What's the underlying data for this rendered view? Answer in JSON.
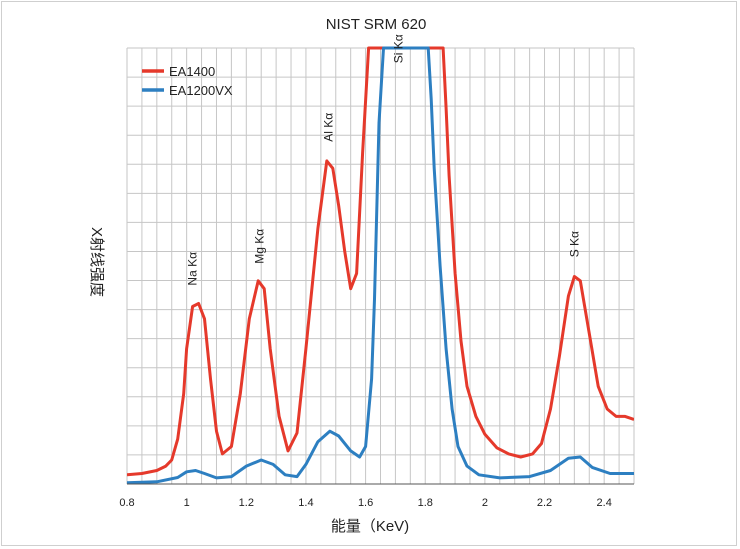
{
  "chart_data": {
    "type": "line",
    "title": "NIST SRM 620",
    "xlabel": "能量（KeV)",
    "ylabel": "X射线强度",
    "xlim": [
      0.8,
      2.5
    ],
    "ylim": [
      0,
      100
    ],
    "x_ticks": [
      "0.8",
      "1",
      "1.2",
      "1.4",
      "1.6",
      "1.8",
      "2",
      "2.2",
      "2.4"
    ],
    "grid": true,
    "legend_position": "top-left",
    "series": [
      {
        "name": "EA1400",
        "color": "#e5392b",
        "points": [
          [
            0.8,
            2.1
          ],
          [
            0.85,
            2.4
          ],
          [
            0.9,
            3.1
          ],
          [
            0.93,
            4.1
          ],
          [
            0.95,
            5.5
          ],
          [
            0.97,
            10.3
          ],
          [
            0.99,
            20.7
          ],
          [
            1.0,
            31.0
          ],
          [
            1.02,
            40.7
          ],
          [
            1.04,
            41.4
          ],
          [
            1.06,
            37.9
          ],
          [
            1.08,
            24.1
          ],
          [
            1.1,
            12.1
          ],
          [
            1.12,
            6.9
          ],
          [
            1.15,
            8.6
          ],
          [
            1.18,
            20.7
          ],
          [
            1.21,
            37.9
          ],
          [
            1.24,
            46.6
          ],
          [
            1.26,
            44.8
          ],
          [
            1.28,
            31.0
          ],
          [
            1.31,
            15.5
          ],
          [
            1.34,
            7.6
          ],
          [
            1.37,
            11.7
          ],
          [
            1.4,
            31.0
          ],
          [
            1.44,
            58.6
          ],
          [
            1.47,
            74.1
          ],
          [
            1.49,
            72.4
          ],
          [
            1.51,
            63.8
          ],
          [
            1.53,
            53.4
          ],
          [
            1.55,
            44.8
          ],
          [
            1.57,
            48.3
          ],
          [
            1.59,
            75.9
          ],
          [
            1.61,
            100
          ],
          [
            1.82,
            100
          ],
          [
            1.86,
            100
          ],
          [
            1.87,
            86.2
          ],
          [
            1.88,
            70.7
          ],
          [
            1.9,
            48.3
          ],
          [
            1.92,
            32.8
          ],
          [
            1.94,
            22.4
          ],
          [
            1.97,
            15.5
          ],
          [
            2.0,
            11.4
          ],
          [
            2.04,
            8.3
          ],
          [
            2.08,
            6.9
          ],
          [
            2.12,
            6.2
          ],
          [
            2.16,
            6.9
          ],
          [
            2.19,
            9.3
          ],
          [
            2.22,
            17.2
          ],
          [
            2.25,
            29.3
          ],
          [
            2.28,
            43.1
          ],
          [
            2.3,
            47.6
          ],
          [
            2.32,
            46.6
          ],
          [
            2.35,
            34.5
          ],
          [
            2.38,
            22.4
          ],
          [
            2.41,
            17.2
          ],
          [
            2.44,
            15.5
          ],
          [
            2.47,
            15.5
          ],
          [
            2.5,
            14.8
          ]
        ]
      },
      {
        "name": "EA1200VX",
        "color": "#2d7fc1",
        "points": [
          [
            0.8,
            0.3
          ],
          [
            0.9,
            0.5
          ],
          [
            0.97,
            1.5
          ],
          [
            1.0,
            2.8
          ],
          [
            1.03,
            3.1
          ],
          [
            1.06,
            2.4
          ],
          [
            1.1,
            1.4
          ],
          [
            1.15,
            1.7
          ],
          [
            1.2,
            4.1
          ],
          [
            1.25,
            5.5
          ],
          [
            1.29,
            4.5
          ],
          [
            1.33,
            2.1
          ],
          [
            1.37,
            1.7
          ],
          [
            1.4,
            4.5
          ],
          [
            1.44,
            9.7
          ],
          [
            1.48,
            12.1
          ],
          [
            1.51,
            11.0
          ],
          [
            1.55,
            7.6
          ],
          [
            1.58,
            6.2
          ],
          [
            1.6,
            8.6
          ],
          [
            1.62,
            24.1
          ],
          [
            1.63,
            42.4
          ],
          [
            1.645,
            82.8
          ],
          [
            1.66,
            100
          ],
          [
            1.81,
            100
          ],
          [
            1.82,
            88.3
          ],
          [
            1.83,
            72.4
          ],
          [
            1.85,
            50.0
          ],
          [
            1.87,
            31.0
          ],
          [
            1.89,
            17.2
          ],
          [
            1.91,
            8.6
          ],
          [
            1.94,
            4.1
          ],
          [
            1.98,
            2.1
          ],
          [
            2.05,
            1.4
          ],
          [
            2.15,
            1.7
          ],
          [
            2.22,
            3.1
          ],
          [
            2.28,
            5.9
          ],
          [
            2.32,
            6.2
          ],
          [
            2.36,
            3.8
          ],
          [
            2.42,
            2.4
          ],
          [
            2.5,
            2.4
          ]
        ]
      }
    ],
    "annotations": [
      {
        "text": "Na Kα",
        "x": 1.02,
        "y": 45.5
      },
      {
        "text": "Mg Kα",
        "x": 1.245,
        "y": 50.5
      },
      {
        "text": "Al Kα",
        "x": 1.475,
        "y": 78.5
      },
      {
        "text": "Si Kα",
        "x": 1.71,
        "y": 96.5
      },
      {
        "text": "S Kα",
        "x": 2.3,
        "y": 52.0
      }
    ]
  }
}
